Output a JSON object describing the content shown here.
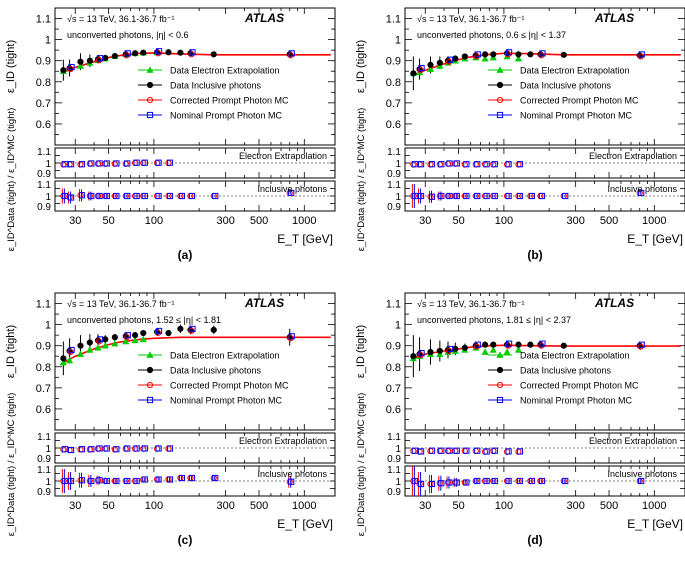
{
  "figure": {
    "x_label": "E_T [GeV]",
    "y_label_main": "ε_ID (tight)",
    "y_label_ratio": "ε_ID^Data (tight) / ε_ID^MC (tight)",
    "experiment": "ATLAS",
    "energy_text": "√s = 13 TeV, 36.1-36.7 fb⁻¹",
    "ratio_labels": {
      "electron": "Electron Extrapolation",
      "inclusive": "Inclusive photons"
    },
    "legend": [
      {
        "label": "Data Electron Extrapolation",
        "color": "#00cc00",
        "marker": "triangle"
      },
      {
        "label": "Data Inclusive photons",
        "color": "#000000",
        "marker": "circle"
      },
      {
        "label": "Corrected Prompt Photon MC",
        "color": "#ff0000",
        "marker": "open-circle"
      },
      {
        "label": "Nominal Prompt Photon MC",
        "color": "#0000ff",
        "marker": "open-square"
      }
    ]
  },
  "chart_data": [
    {
      "type": "scatter",
      "panel_label": "(a)",
      "region": "unconverted photons, |η| < 0.6",
      "xscale": "log",
      "xlim": [
        22,
        1600
      ],
      "xticks": [
        30,
        50,
        100,
        300,
        500,
        1000
      ],
      "ylim": [
        0.5,
        1.15
      ],
      "yticks": [
        0.6,
        0.7,
        0.8,
        0.9,
        1,
        1.1
      ],
      "ratio_ylim": [
        0.9,
        1.1
      ],
      "ratio_yticks": [
        0.9,
        1,
        1.1
      ],
      "mc_curve": {
        "x": [
          25,
          30,
          40,
          50,
          60,
          80,
          100,
          150,
          250,
          1500
        ],
        "y": [
          0.845,
          0.868,
          0.895,
          0.915,
          0.925,
          0.935,
          0.937,
          0.932,
          0.928,
          0.928
        ]
      },
      "electron_x": [
        25,
        27.5,
        32.5,
        37.5,
        42.5,
        47.5,
        55,
        65,
        75,
        85,
        105
      ],
      "electron_y": [
        0.85,
        0.862,
        0.875,
        0.89,
        0.902,
        0.91,
        0.922,
        0.93,
        0.935,
        0.938,
        0.94
      ],
      "inclusive_x": [
        25,
        27.5,
        32.5,
        37.5,
        42.5,
        47.5,
        55,
        65,
        75,
        85,
        105,
        125,
        150,
        175,
        250,
        800
      ],
      "inclusive_y": [
        0.855,
        0.865,
        0.895,
        0.9,
        0.907,
        0.913,
        0.922,
        0.93,
        0.935,
        0.938,
        0.94,
        0.94,
        0.938,
        0.935,
        0.93,
        0.93
      ],
      "inclusive_err": [
        0.05,
        0.04,
        0.04,
        0.03,
        0.02,
        0.015,
        0.01,
        0.008,
        0.006,
        0.006,
        0.005,
        0.005,
        0.005,
        0.005,
        0.005,
        0.01
      ],
      "electron_ratio_x": [
        25,
        27.5,
        32.5,
        37.5,
        42.5,
        47.5,
        55,
        65,
        75,
        85,
        105,
        125
      ],
      "electron_ratio_y": [
        0.99,
        0.99,
        0.99,
        0.995,
        0.995,
        0.995,
        0.995,
        0.995,
        1.0,
        1.0,
        1.0,
        1.0
      ],
      "inclusive_ratio_x": [
        25,
        27.5,
        32.5,
        37.5,
        42.5,
        47.5,
        55,
        65,
        75,
        85,
        105,
        125,
        150,
        175,
        250,
        800
      ],
      "inclusive_ratio_y": [
        1.0,
        0.99,
        1.005,
        1.0,
        1.0,
        1.0,
        1.0,
        1.0,
        1.0,
        1.0,
        1.0,
        1.0,
        1.0,
        1.0,
        1.0,
        1.02
      ],
      "inclusive_ratio_err": [
        0.05,
        0.04,
        0.04,
        0.03,
        0.02,
        0.015,
        0.01,
        0.008,
        0.006,
        0.006,
        0.005,
        0.005,
        0.005,
        0.005,
        0.005,
        0.01
      ]
    },
    {
      "type": "scatter",
      "panel_label": "(b)",
      "region": "unconverted photons, 0.6 ≤ |η| < 1.37",
      "xscale": "log",
      "xlim": [
        22,
        1600
      ],
      "xticks": [
        30,
        50,
        100,
        300,
        500,
        1000
      ],
      "ylim": [
        0.5,
        1.15
      ],
      "yticks": [
        0.6,
        0.7,
        0.8,
        0.9,
        1,
        1.1
      ],
      "ratio_ylim": [
        0.9,
        1.1
      ],
      "ratio_yticks": [
        0.9,
        1,
        1.1
      ],
      "mc_curve": {
        "x": [
          25,
          30,
          40,
          50,
          60,
          80,
          100,
          150,
          250,
          1500
        ],
        "y": [
          0.83,
          0.855,
          0.885,
          0.905,
          0.918,
          0.93,
          0.935,
          0.933,
          0.928,
          0.928
        ]
      },
      "electron_x": [
        25,
        27.5,
        32.5,
        37.5,
        42.5,
        47.5,
        55,
        65,
        75,
        85,
        105,
        125
      ],
      "electron_y": [
        0.84,
        0.845,
        0.86,
        0.875,
        0.89,
        0.9,
        0.91,
        0.915,
        0.91,
        0.915,
        0.92,
        0.91
      ],
      "inclusive_x": [
        25,
        27.5,
        32.5,
        37.5,
        42.5,
        47.5,
        55,
        65,
        75,
        85,
        105,
        125,
        150,
        175,
        250,
        800
      ],
      "inclusive_y": [
        0.84,
        0.86,
        0.88,
        0.89,
        0.9,
        0.91,
        0.92,
        0.925,
        0.93,
        0.93,
        0.935,
        0.93,
        0.93,
        0.93,
        0.928,
        0.925
      ],
      "inclusive_err": [
        0.08,
        0.05,
        0.04,
        0.03,
        0.02,
        0.015,
        0.01,
        0.008,
        0.006,
        0.006,
        0.005,
        0.005,
        0.005,
        0.005,
        0.005,
        0.01
      ],
      "electron_ratio_x": [
        25,
        27.5,
        32.5,
        37.5,
        42.5,
        47.5,
        55,
        65,
        75,
        85,
        105,
        125
      ],
      "electron_ratio_y": [
        0.99,
        0.99,
        0.99,
        0.99,
        0.995,
        0.995,
        0.99,
        0.99,
        0.99,
        0.99,
        0.99,
        0.99
      ],
      "inclusive_ratio_x": [
        25,
        27.5,
        32.5,
        37.5,
        42.5,
        47.5,
        55,
        65,
        75,
        85,
        105,
        125,
        150,
        175,
        250,
        800
      ],
      "inclusive_ratio_y": [
        1.0,
        1.0,
        0.995,
        1.0,
        1.0,
        1.0,
        1.0,
        1.0,
        1.0,
        1.0,
        1.0,
        1.0,
        1.0,
        1.0,
        1.0,
        1.02
      ],
      "inclusive_ratio_err": [
        0.08,
        0.05,
        0.04,
        0.03,
        0.02,
        0.015,
        0.01,
        0.008,
        0.006,
        0.006,
        0.005,
        0.005,
        0.005,
        0.005,
        0.005,
        0.01
      ]
    },
    {
      "type": "scatter",
      "panel_label": "(c)",
      "region": "unconverted photons, 1.52 ≤ |η| < 1.81",
      "xscale": "log",
      "xlim": [
        22,
        1600
      ],
      "xticks": [
        30,
        50,
        100,
        300,
        500,
        1000
      ],
      "ylim": [
        0.5,
        1.15
      ],
      "yticks": [
        0.6,
        0.7,
        0.8,
        0.9,
        1,
        1.1
      ],
      "ratio_ylim": [
        0.9,
        1.1
      ],
      "ratio_yticks": [
        0.9,
        1,
        1.1
      ],
      "mc_curve": {
        "x": [
          25,
          30,
          40,
          50,
          60,
          80,
          100,
          150,
          250,
          1500
        ],
        "y": [
          0.82,
          0.85,
          0.885,
          0.905,
          0.918,
          0.93,
          0.935,
          0.94,
          0.94,
          0.94
        ]
      },
      "electron_x": [
        25,
        27.5,
        32.5,
        37.5,
        42.5,
        47.5,
        55,
        65,
        75,
        85
      ],
      "electron_y": [
        0.82,
        0.83,
        0.86,
        0.88,
        0.89,
        0.9,
        0.91,
        0.92,
        0.925,
        0.93
      ],
      "inclusive_x": [
        25,
        27.5,
        32.5,
        37.5,
        42.5,
        47.5,
        55,
        65,
        75,
        85,
        105,
        125,
        150,
        175,
        250,
        800
      ],
      "inclusive_y": [
        0.84,
        0.875,
        0.9,
        0.915,
        0.925,
        0.93,
        0.94,
        0.945,
        0.95,
        0.96,
        0.965,
        0.96,
        0.98,
        0.975,
        0.975,
        0.94
      ],
      "inclusive_err": [
        0.08,
        0.06,
        0.05,
        0.04,
        0.03,
        0.02,
        0.015,
        0.01,
        0.01,
        0.01,
        0.015,
        0.015,
        0.02,
        0.02,
        0.02,
        0.04
      ],
      "electron_ratio_x": [
        25,
        27.5,
        32.5,
        37.5,
        42.5,
        47.5,
        55,
        65,
        75,
        85,
        105,
        125
      ],
      "electron_ratio_y": [
        0.99,
        0.985,
        0.99,
        0.99,
        0.995,
        0.995,
        0.99,
        0.995,
        0.995,
        0.995,
        0.995,
        0.995
      ],
      "inclusive_ratio_x": [
        25,
        27.5,
        32.5,
        37.5,
        42.5,
        47.5,
        55,
        65,
        75,
        85,
        105,
        125,
        150,
        175,
        250,
        800
      ],
      "inclusive_ratio_y": [
        1.0,
        1.0,
        1.005,
        1.0,
        1.005,
        1.0,
        1.0,
        1.0,
        1.0,
        1.01,
        1.01,
        1.01,
        1.02,
        1.02,
        1.02,
        0.995
      ],
      "inclusive_ratio_err": [
        0.08,
        0.06,
        0.05,
        0.04,
        0.03,
        0.02,
        0.015,
        0.01,
        0.01,
        0.01,
        0.015,
        0.015,
        0.02,
        0.02,
        0.02,
        0.04
      ]
    },
    {
      "type": "scatter",
      "panel_label": "(d)",
      "region": "unconverted photons, 1.81 ≤ |η| < 2.37",
      "xscale": "log",
      "xlim": [
        22,
        1600
      ],
      "xticks": [
        30,
        50,
        100,
        300,
        500,
        1000
      ],
      "ylim": [
        0.5,
        1.15
      ],
      "yticks": [
        0.6,
        0.7,
        0.8,
        0.9,
        1,
        1.1
      ],
      "ratio_ylim": [
        0.9,
        1.1
      ],
      "ratio_yticks": [
        0.9,
        1,
        1.1
      ],
      "mc_curve": {
        "x": [
          25,
          30,
          40,
          50,
          60,
          80,
          100,
          150,
          250,
          1500
        ],
        "y": [
          0.84,
          0.86,
          0.875,
          0.885,
          0.893,
          0.9,
          0.902,
          0.9,
          0.898,
          0.898
        ]
      },
      "electron_x": [
        25,
        27.5,
        32.5,
        37.5,
        42.5,
        47.5,
        55,
        65,
        75,
        85,
        105,
        125
      ],
      "electron_y": [
        0.84,
        0.85,
        0.86,
        0.86,
        0.87,
        0.875,
        0.88,
        0.89,
        0.87,
        0.88,
        0.87,
        0.88
      ],
      "inclusive_x": [
        25,
        27.5,
        32.5,
        37.5,
        42.5,
        47.5,
        55,
        65,
        75,
        85,
        105,
        125,
        150,
        175,
        250,
        800
      ],
      "inclusive_y": [
        0.85,
        0.86,
        0.87,
        0.875,
        0.88,
        0.885,
        0.89,
        0.9,
        0.905,
        0.905,
        0.905,
        0.905,
        0.905,
        0.905,
        0.9,
        0.9
      ],
      "inclusive_err": [
        0.1,
        0.08,
        0.06,
        0.05,
        0.04,
        0.03,
        0.02,
        0.015,
        0.01,
        0.01,
        0.01,
        0.01,
        0.01,
        0.01,
        0.01,
        0.015
      ],
      "electron_ratio_x": [
        25,
        27.5,
        32.5,
        37.5,
        42.5,
        47.5,
        55,
        65,
        75,
        85,
        105,
        125
      ],
      "electron_ratio_y": [
        0.98,
        0.975,
        0.98,
        0.98,
        0.98,
        0.98,
        0.98,
        0.98,
        0.975,
        0.98,
        0.975,
        0.975
      ],
      "inclusive_ratio_x": [
        25,
        27.5,
        32.5,
        37.5,
        42.5,
        47.5,
        55,
        65,
        75,
        85,
        105,
        125,
        150,
        175,
        250,
        800
      ],
      "inclusive_ratio_y": [
        1.0,
        0.98,
        0.98,
        0.985,
        0.99,
        0.99,
        0.99,
        1.0,
        1.0,
        1.0,
        1.0,
        1.0,
        1.0,
        1.0,
        1.0,
        1.0
      ],
      "inclusive_ratio_err": [
        0.1,
        0.08,
        0.06,
        0.05,
        0.04,
        0.03,
        0.02,
        0.015,
        0.01,
        0.01,
        0.01,
        0.01,
        0.01,
        0.01,
        0.01,
        0.015
      ]
    }
  ]
}
